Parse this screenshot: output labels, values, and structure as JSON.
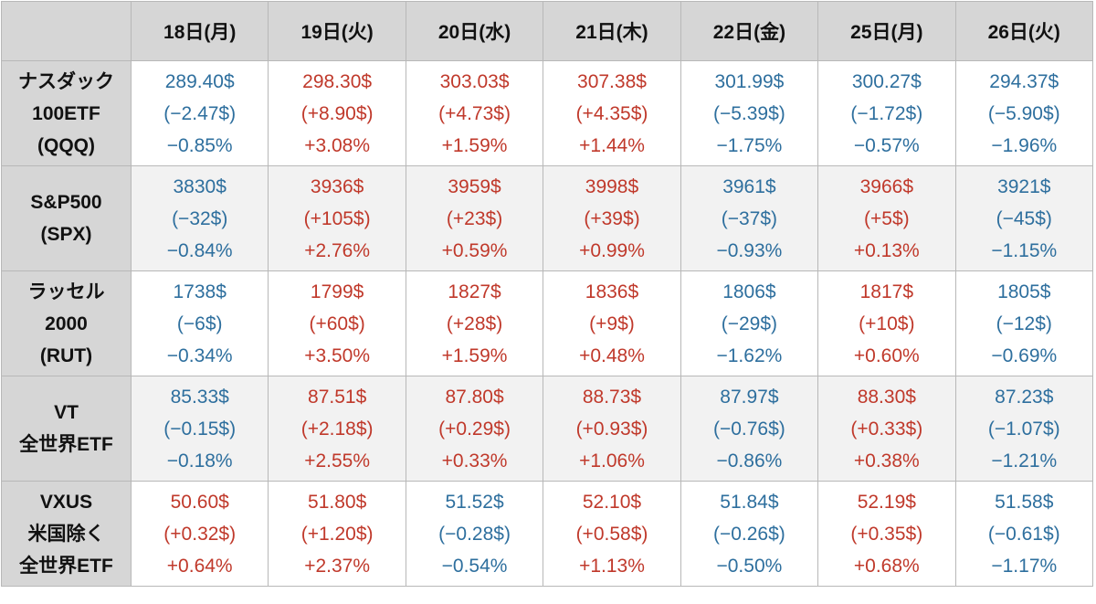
{
  "header": {
    "corner": "",
    "days": [
      "18日(月)",
      "19日(火)",
      "20日(水)",
      "21日(木)",
      "22日(金)",
      "25日(月)",
      "26日(火)"
    ]
  },
  "colors": {
    "up": "#c0392b",
    "down": "#2e6f9e",
    "header_bg": "#d6d6d6",
    "alt_row_bg": "#f2f2f2"
  },
  "rows": [
    {
      "name_lines": [
        "ナスダック",
        "100ETF",
        "(QQQ)"
      ],
      "cells": [
        {
          "price": "289.40$",
          "change": "(−2.47$)",
          "pct": "−0.85%",
          "dir": "down"
        },
        {
          "price": "298.30$",
          "change": "(+8.90$)",
          "pct": "+3.08%",
          "dir": "up"
        },
        {
          "price": "303.03$",
          "change": "(+4.73$)",
          "pct": "+1.59%",
          "dir": "up"
        },
        {
          "price": "307.38$",
          "change": "(+4.35$)",
          "pct": "+1.44%",
          "dir": "up"
        },
        {
          "price": "301.99$",
          "change": "(−5.39$)",
          "pct": "−1.75%",
          "dir": "down"
        },
        {
          "price": "300.27$",
          "change": "(−1.72$)",
          "pct": "−0.57%",
          "dir": "down"
        },
        {
          "price": "294.37$",
          "change": "(−5.90$)",
          "pct": "−1.96%",
          "dir": "down"
        }
      ]
    },
    {
      "name_lines": [
        "S&P500",
        "(SPX)"
      ],
      "cells": [
        {
          "price": "3830$",
          "change": "(−32$)",
          "pct": "−0.84%",
          "dir": "down"
        },
        {
          "price": "3936$",
          "change": "(+105$)",
          "pct": "+2.76%",
          "dir": "up"
        },
        {
          "price": "3959$",
          "change": "(+23$)",
          "pct": "+0.59%",
          "dir": "up"
        },
        {
          "price": "3998$",
          "change": "(+39$)",
          "pct": "+0.99%",
          "dir": "up"
        },
        {
          "price": "3961$",
          "change": "(−37$)",
          "pct": "−0.93%",
          "dir": "down"
        },
        {
          "price": "3966$",
          "change": "(+5$)",
          "pct": "+0.13%",
          "dir": "up"
        },
        {
          "price": "3921$",
          "change": "(−45$)",
          "pct": "−1.15%",
          "dir": "down"
        }
      ]
    },
    {
      "name_lines": [
        "ラッセル",
        "2000",
        "(RUT)"
      ],
      "cells": [
        {
          "price": "1738$",
          "change": "(−6$)",
          "pct": "−0.34%",
          "dir": "down"
        },
        {
          "price": "1799$",
          "change": "(+60$)",
          "pct": "+3.50%",
          "dir": "up"
        },
        {
          "price": "1827$",
          "change": "(+28$)",
          "pct": "+1.59%",
          "dir": "up"
        },
        {
          "price": "1836$",
          "change": "(+9$)",
          "pct": "+0.48%",
          "dir": "up"
        },
        {
          "price": "1806$",
          "change": "(−29$)",
          "pct": "−1.62%",
          "dir": "down"
        },
        {
          "price": "1817$",
          "change": "(+10$)",
          "pct": "+0.60%",
          "dir": "up"
        },
        {
          "price": "1805$",
          "change": "(−12$)",
          "pct": "−0.69%",
          "dir": "down"
        }
      ]
    },
    {
      "name_lines": [
        "VT",
        "全世界ETF"
      ],
      "cells": [
        {
          "price": "85.33$",
          "change": "(−0.15$)",
          "pct": "−0.18%",
          "dir": "down"
        },
        {
          "price": "87.51$",
          "change": "(+2.18$)",
          "pct": "+2.55%",
          "dir": "up"
        },
        {
          "price": "87.80$",
          "change": "(+0.29$)",
          "pct": "+0.33%",
          "dir": "up"
        },
        {
          "price": "88.73$",
          "change": "(+0.93$)",
          "pct": "+1.06%",
          "dir": "up"
        },
        {
          "price": "87.97$",
          "change": "(−0.76$)",
          "pct": "−0.86%",
          "dir": "down"
        },
        {
          "price": "88.30$",
          "change": "(+0.33$)",
          "pct": "+0.38%",
          "dir": "up"
        },
        {
          "price": "87.23$",
          "change": "(−1.07$)",
          "pct": "−1.21%",
          "dir": "down"
        }
      ]
    },
    {
      "name_lines": [
        "VXUS",
        "米国除く",
        "全世界ETF"
      ],
      "cells": [
        {
          "price": "50.60$",
          "change": "(+0.32$)",
          "pct": "+0.64%",
          "dir": "up"
        },
        {
          "price": "51.80$",
          "change": "(+1.20$)",
          "pct": "+2.37%",
          "dir": "up"
        },
        {
          "price": "51.52$",
          "change": "(−0.28$)",
          "pct": "−0.54%",
          "dir": "down"
        },
        {
          "price": "52.10$",
          "change": "(+0.58$)",
          "pct": "+1.13%",
          "dir": "up"
        },
        {
          "price": "51.84$",
          "change": "(−0.26$)",
          "pct": "−0.50%",
          "dir": "down"
        },
        {
          "price": "52.19$",
          "change": "(+0.35$)",
          "pct": "+0.68%",
          "dir": "up"
        },
        {
          "price": "51.58$",
          "change": "(−0.61$)",
          "pct": "−1.17%",
          "dir": "down"
        }
      ]
    }
  ]
}
